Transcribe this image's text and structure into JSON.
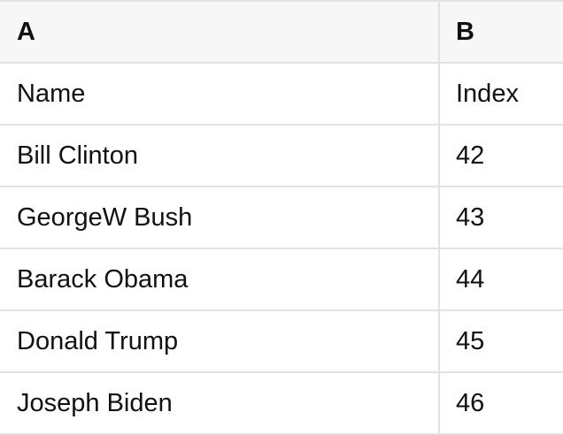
{
  "table": {
    "columns": [
      {
        "label": "A"
      },
      {
        "label": "B"
      }
    ],
    "rows": [
      {
        "a": "Name",
        "b": "Index"
      },
      {
        "a": "Bill Clinton",
        "b": "42"
      },
      {
        "a": "GeorgeW Bush",
        "b": "43"
      },
      {
        "a": "Barack Obama",
        "b": "44"
      },
      {
        "a": "Donald Trump",
        "b": "45"
      },
      {
        "a": "Joseph Biden",
        "b": "46"
      }
    ]
  },
  "colors": {
    "header_bg": "#f7f7f7",
    "row_bg": "#ffffff",
    "border": "#e2e2e2",
    "text": "#111111"
  }
}
